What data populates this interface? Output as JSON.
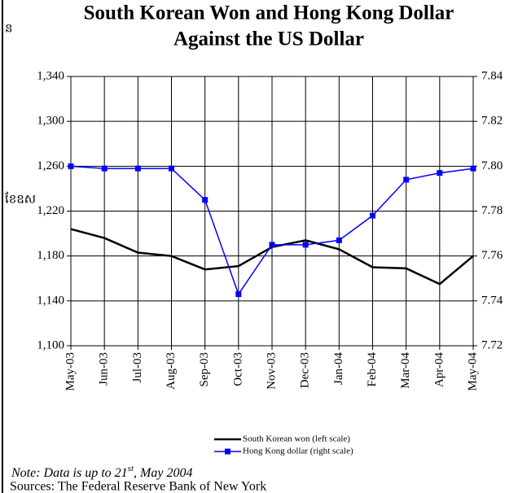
{
  "side_texts": [
    "ន",
    "ខែឧស"
  ],
  "chart_data": {
    "type": "line",
    "title_lines": [
      "South Korean Won and Hong Kong Dollar",
      "Against the US Dollar"
    ],
    "categories": [
      "May-03",
      "Jun-03",
      "Jul-03",
      "Aug-03",
      "Sep-03",
      "Oct-03",
      "Nov-03",
      "Dec-03",
      "Jan-04",
      "Feb-04",
      "Mar-04",
      "Apr-04",
      "May-04"
    ],
    "series": [
      {
        "name": "South Korean won (left scale)",
        "color": "#000000",
        "axis": "y",
        "values": [
          1204,
          1196,
          1183,
          1180,
          1168,
          1171,
          1188,
          1194,
          1186,
          1170,
          1169,
          1155,
          1180
        ]
      },
      {
        "name": "Hong Kong dollar (right scale)",
        "color": "#0000ff",
        "axis": "y2",
        "values": [
          7.8,
          7.799,
          7.799,
          7.799,
          7.785,
          7.743,
          7.765,
          7.765,
          7.767,
          7.778,
          7.794,
          7.797,
          7.799
        ]
      }
    ],
    "ylim": [
      1100,
      1340
    ],
    "yticks": [
      {
        "value": 1100,
        "label": "1,100"
      },
      {
        "value": 1140,
        "label": "1,140"
      },
      {
        "value": 1180,
        "label": "1,180"
      },
      {
        "value": 1220,
        "label": "1,220"
      },
      {
        "value": 1260,
        "label": "1,260"
      },
      {
        "value": 1300,
        "label": "1,300"
      },
      {
        "value": 1340,
        "label": "1,340"
      }
    ],
    "y2lim": [
      7.72,
      7.84
    ],
    "y2ticks": [
      7.72,
      7.74,
      7.76,
      7.78,
      {
        "value": 7.8,
        "label": "7.80"
      },
      7.82,
      7.84
    ],
    "grid": true,
    "note_parts": [
      "Note: Data is up to 21",
      "st",
      ", May 2004"
    ],
    "source": "Sources: The Federal Reserve Bank of New York"
  }
}
